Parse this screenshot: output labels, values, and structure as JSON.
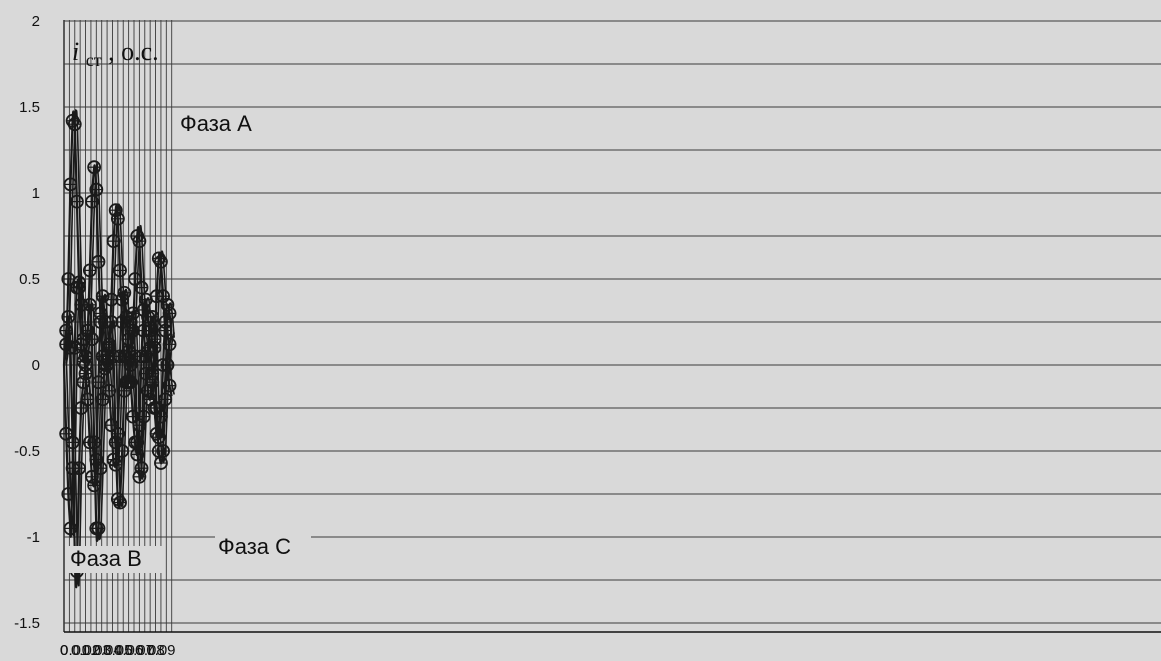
{
  "chart_data": {
    "type": "line",
    "ylabel_main": "i",
    "ylabel_sub": "ст",
    "ylabel_suffix": " , o.c.",
    "xlim": [
      0,
      0.1
    ],
    "ylim": [
      -1.5,
      2
    ],
    "xticks": [
      0,
      0.01,
      0.02,
      0.03,
      0.04,
      0.05,
      0.06,
      0.07,
      0.08,
      0.09
    ],
    "xtick_labels": [
      "0",
      "0.01",
      "0.02",
      "0.03",
      "0.04",
      "0.05",
      "0.06",
      "0.07",
      "0.08",
      "0.09"
    ],
    "yticks": [
      -1.5,
      -1,
      -0.5,
      0,
      0.5,
      1,
      1.5,
      2
    ],
    "ytick_labels": [
      "-1.5",
      "-1",
      "-0.5",
      "0",
      "0.5",
      "1",
      "1.5",
      "2"
    ],
    "grid": true,
    "series": [
      {
        "name": "Фаза A",
        "x": [
          0,
          0.002,
          0.004,
          0.006,
          0.008,
          0.009,
          0.01,
          0.012,
          0.014,
          0.016,
          0.018,
          0.02,
          0.022,
          0.024,
          0.026,
          0.028,
          0.029,
          0.03,
          0.032,
          0.034,
          0.036,
          0.038,
          0.04,
          0.042,
          0.044,
          0.046,
          0.048,
          0.049,
          0.05,
          0.052,
          0.054,
          0.056,
          0.058,
          0.06,
          0.062,
          0.064,
          0.066,
          0.068,
          0.069,
          0.07,
          0.072,
          0.074,
          0.076,
          0.078,
          0.08,
          0.082,
          0.084,
          0.086,
          0.088,
          0.089,
          0.09,
          0.092,
          0.094,
          0.096,
          0.098,
          0.1
        ],
        "values": [
          0,
          0.12,
          0.5,
          1.05,
          1.42,
          1.47,
          1.4,
          0.95,
          0.45,
          0.12,
          0.02,
          0.05,
          0.2,
          0.55,
          0.95,
          1.15,
          1.12,
          1.02,
          0.6,
          0.25,
          0.05,
          -0.02,
          0.0,
          0.12,
          0.38,
          0.72,
          0.9,
          0.92,
          0.85,
          0.55,
          0.25,
          0.05,
          -0.1,
          -0.1,
          0.0,
          0.2,
          0.5,
          0.75,
          0.8,
          0.72,
          0.45,
          0.2,
          0.05,
          -0.15,
          -0.2,
          -0.1,
          0.1,
          0.4,
          0.62,
          0.65,
          0.6,
          0.4,
          0.2,
          0.0,
          -0.12,
          -0.18
        ],
        "markers": [
          0.002,
          0.004,
          0.006,
          0.008,
          0.01,
          0.012,
          0.014,
          0.016,
          0.018,
          0.02,
          0.022,
          0.024,
          0.026,
          0.028,
          0.03,
          0.032,
          0.034,
          0.036,
          0.038,
          0.04,
          0.042,
          0.044,
          0.046,
          0.048,
          0.05,
          0.052,
          0.054,
          0.056,
          0.058,
          0.06,
          0.062,
          0.064,
          0.066,
          0.068,
          0.07,
          0.072,
          0.074,
          0.076,
          0.078,
          0.08,
          0.082,
          0.084,
          0.086,
          0.088,
          0.09,
          0.092,
          0.094,
          0.096,
          0.098
        ]
      },
      {
        "name": "Фаза B",
        "x": [
          0,
          0.002,
          0.004,
          0.006,
          0.0065,
          0.008,
          0.01,
          0.012,
          0.014,
          0.016,
          0.018,
          0.02,
          0.022,
          0.024,
          0.026,
          0.028,
          0.03,
          0.032,
          0.034,
          0.036,
          0.038,
          0.04,
          0.042,
          0.044,
          0.046,
          0.048,
          0.05,
          0.052,
          0.054,
          0.056,
          0.058,
          0.06,
          0.062,
          0.064,
          0.066,
          0.068,
          0.07,
          0.072,
          0.074,
          0.076,
          0.078,
          0.08,
          0.082,
          0.084,
          0.086,
          0.088,
          0.09,
          0.092,
          0.094,
          0.096,
          0.098,
          0.1
        ],
        "values": [
          0,
          -0.4,
          -0.75,
          -0.95,
          -0.97,
          -0.6,
          0.1,
          0.45,
          0.48,
          0.35,
          0.15,
          -0.05,
          -0.2,
          -0.45,
          -0.65,
          -0.7,
          -0.55,
          -0.1,
          0.3,
          0.4,
          0.25,
          0.05,
          -0.15,
          -0.35,
          -0.55,
          -0.58,
          -0.4,
          0.05,
          0.38,
          0.42,
          0.28,
          0.08,
          -0.1,
          -0.3,
          -0.45,
          -0.52,
          -0.35,
          0.05,
          0.32,
          0.38,
          0.28,
          0.1,
          -0.05,
          -0.25,
          -0.4,
          -0.42,
          -0.3,
          0.0,
          0.25,
          0.35,
          0.3,
          0.15
        ],
        "markers": [
          0.002,
          0.004,
          0.006,
          0.008,
          0.01,
          0.012,
          0.014,
          0.016,
          0.018,
          0.02,
          0.022,
          0.024,
          0.026,
          0.028,
          0.03,
          0.032,
          0.034,
          0.036,
          0.038,
          0.04,
          0.042,
          0.044,
          0.046,
          0.048,
          0.05,
          0.052,
          0.054,
          0.056,
          0.058,
          0.06,
          0.062,
          0.064,
          0.066,
          0.068,
          0.07,
          0.072,
          0.074,
          0.076,
          0.078,
          0.08,
          0.082,
          0.084,
          0.086,
          0.088,
          0.09,
          0.092,
          0.094,
          0.096,
          0.098
        ]
      },
      {
        "name": "Фаза C",
        "x": [
          0,
          0.002,
          0.004,
          0.006,
          0.008,
          0.01,
          0.011,
          0.012,
          0.014,
          0.016,
          0.018,
          0.02,
          0.022,
          0.024,
          0.026,
          0.028,
          0.03,
          0.031,
          0.032,
          0.034,
          0.036,
          0.038,
          0.04,
          0.042,
          0.044,
          0.046,
          0.048,
          0.05,
          0.051,
          0.052,
          0.054,
          0.056,
          0.058,
          0.06,
          0.062,
          0.064,
          0.066,
          0.068,
          0.07,
          0.071,
          0.072,
          0.074,
          0.076,
          0.078,
          0.08,
          0.082,
          0.084,
          0.086,
          0.088,
          0.09,
          0.091,
          0.092,
          0.094,
          0.096,
          0.098,
          0.1
        ],
        "values": [
          0,
          0.2,
          0.28,
          0.1,
          -0.45,
          -1.1,
          -1.28,
          -1.2,
          -0.6,
          -0.25,
          -0.1,
          0.0,
          0.2,
          0.35,
          0.15,
          -0.45,
          -0.95,
          -1.02,
          -0.95,
          -0.6,
          -0.2,
          0.0,
          0.03,
          0.1,
          0.25,
          0.05,
          -0.45,
          -0.78,
          -0.82,
          -0.8,
          -0.5,
          -0.15,
          0.05,
          0.15,
          0.25,
          0.3,
          0.05,
          -0.45,
          -0.65,
          -0.66,
          -0.6,
          -0.3,
          -0.05,
          0.08,
          0.2,
          0.28,
          0.15,
          -0.25,
          -0.5,
          -0.57,
          -0.55,
          -0.5,
          -0.2,
          0.0,
          0.12,
          0.18
        ],
        "markers": [
          0.002,
          0.004,
          0.006,
          0.008,
          0.01,
          0.012,
          0.014,
          0.016,
          0.018,
          0.02,
          0.022,
          0.024,
          0.026,
          0.028,
          0.03,
          0.032,
          0.034,
          0.036,
          0.038,
          0.04,
          0.042,
          0.044,
          0.046,
          0.048,
          0.05,
          0.052,
          0.054,
          0.056,
          0.058,
          0.06,
          0.062,
          0.064,
          0.066,
          0.068,
          0.07,
          0.072,
          0.074,
          0.076,
          0.078,
          0.08,
          0.082,
          0.084,
          0.086,
          0.088,
          0.09,
          0.092,
          0.094,
          0.096,
          0.098
        ]
      }
    ],
    "annotations": [
      {
        "text": "Фаза A",
        "series": "Фаза A"
      },
      {
        "text": "Фаза B",
        "series": "Фаза B"
      },
      {
        "text": "Фаза C",
        "series": "Фаза C"
      }
    ],
    "colors": {
      "background": "#d9d9d9",
      "line": "#1a1a1a",
      "grid": "#3a3a3a",
      "ink": "#111111"
    }
  }
}
